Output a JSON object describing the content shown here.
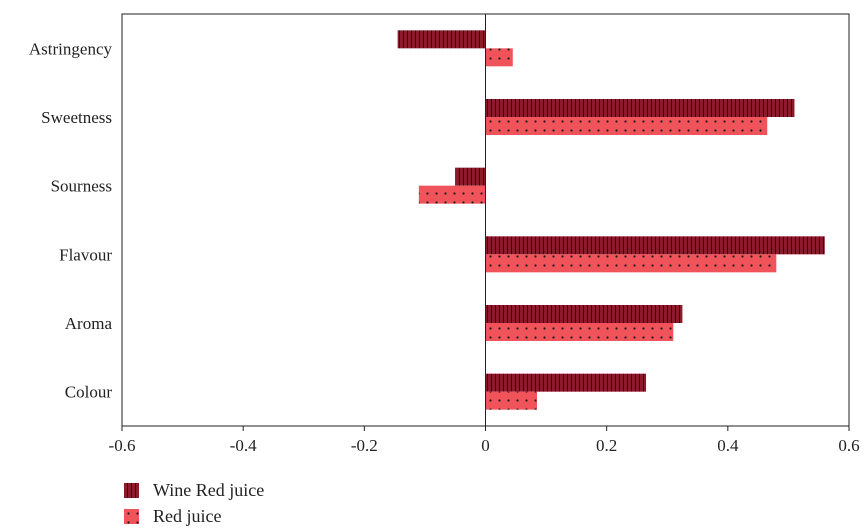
{
  "chart_data": {
    "type": "bar",
    "orientation": "horizontal",
    "categories": [
      "Colour",
      "Aroma",
      "Flavour",
      "Sourness",
      "Sweetness",
      "Astringency"
    ],
    "series": [
      {
        "name": "Wine Red juice",
        "values": [
          0.265,
          0.325,
          0.56,
          -0.05,
          0.51,
          -0.145
        ],
        "color": "#8b1a2b",
        "pattern": "vertical-stripes"
      },
      {
        "name": "Red juice",
        "values": [
          0.085,
          0.31,
          0.48,
          -0.11,
          0.465,
          0.045
        ],
        "color": "#f0545a",
        "pattern": "dots"
      }
    ],
    "xlim": [
      -0.6,
      0.6
    ],
    "xticks": [
      "-0.6",
      "-0.4",
      "-0.2",
      "0",
      "0.2",
      "0.4",
      "0.6"
    ],
    "xtick_values": [
      -0.6,
      -0.4,
      -0.2,
      0,
      0.2,
      0.4,
      0.6
    ],
    "title": "",
    "xlabel": "",
    "ylabel": "",
    "legend_position": "bottom-left"
  }
}
